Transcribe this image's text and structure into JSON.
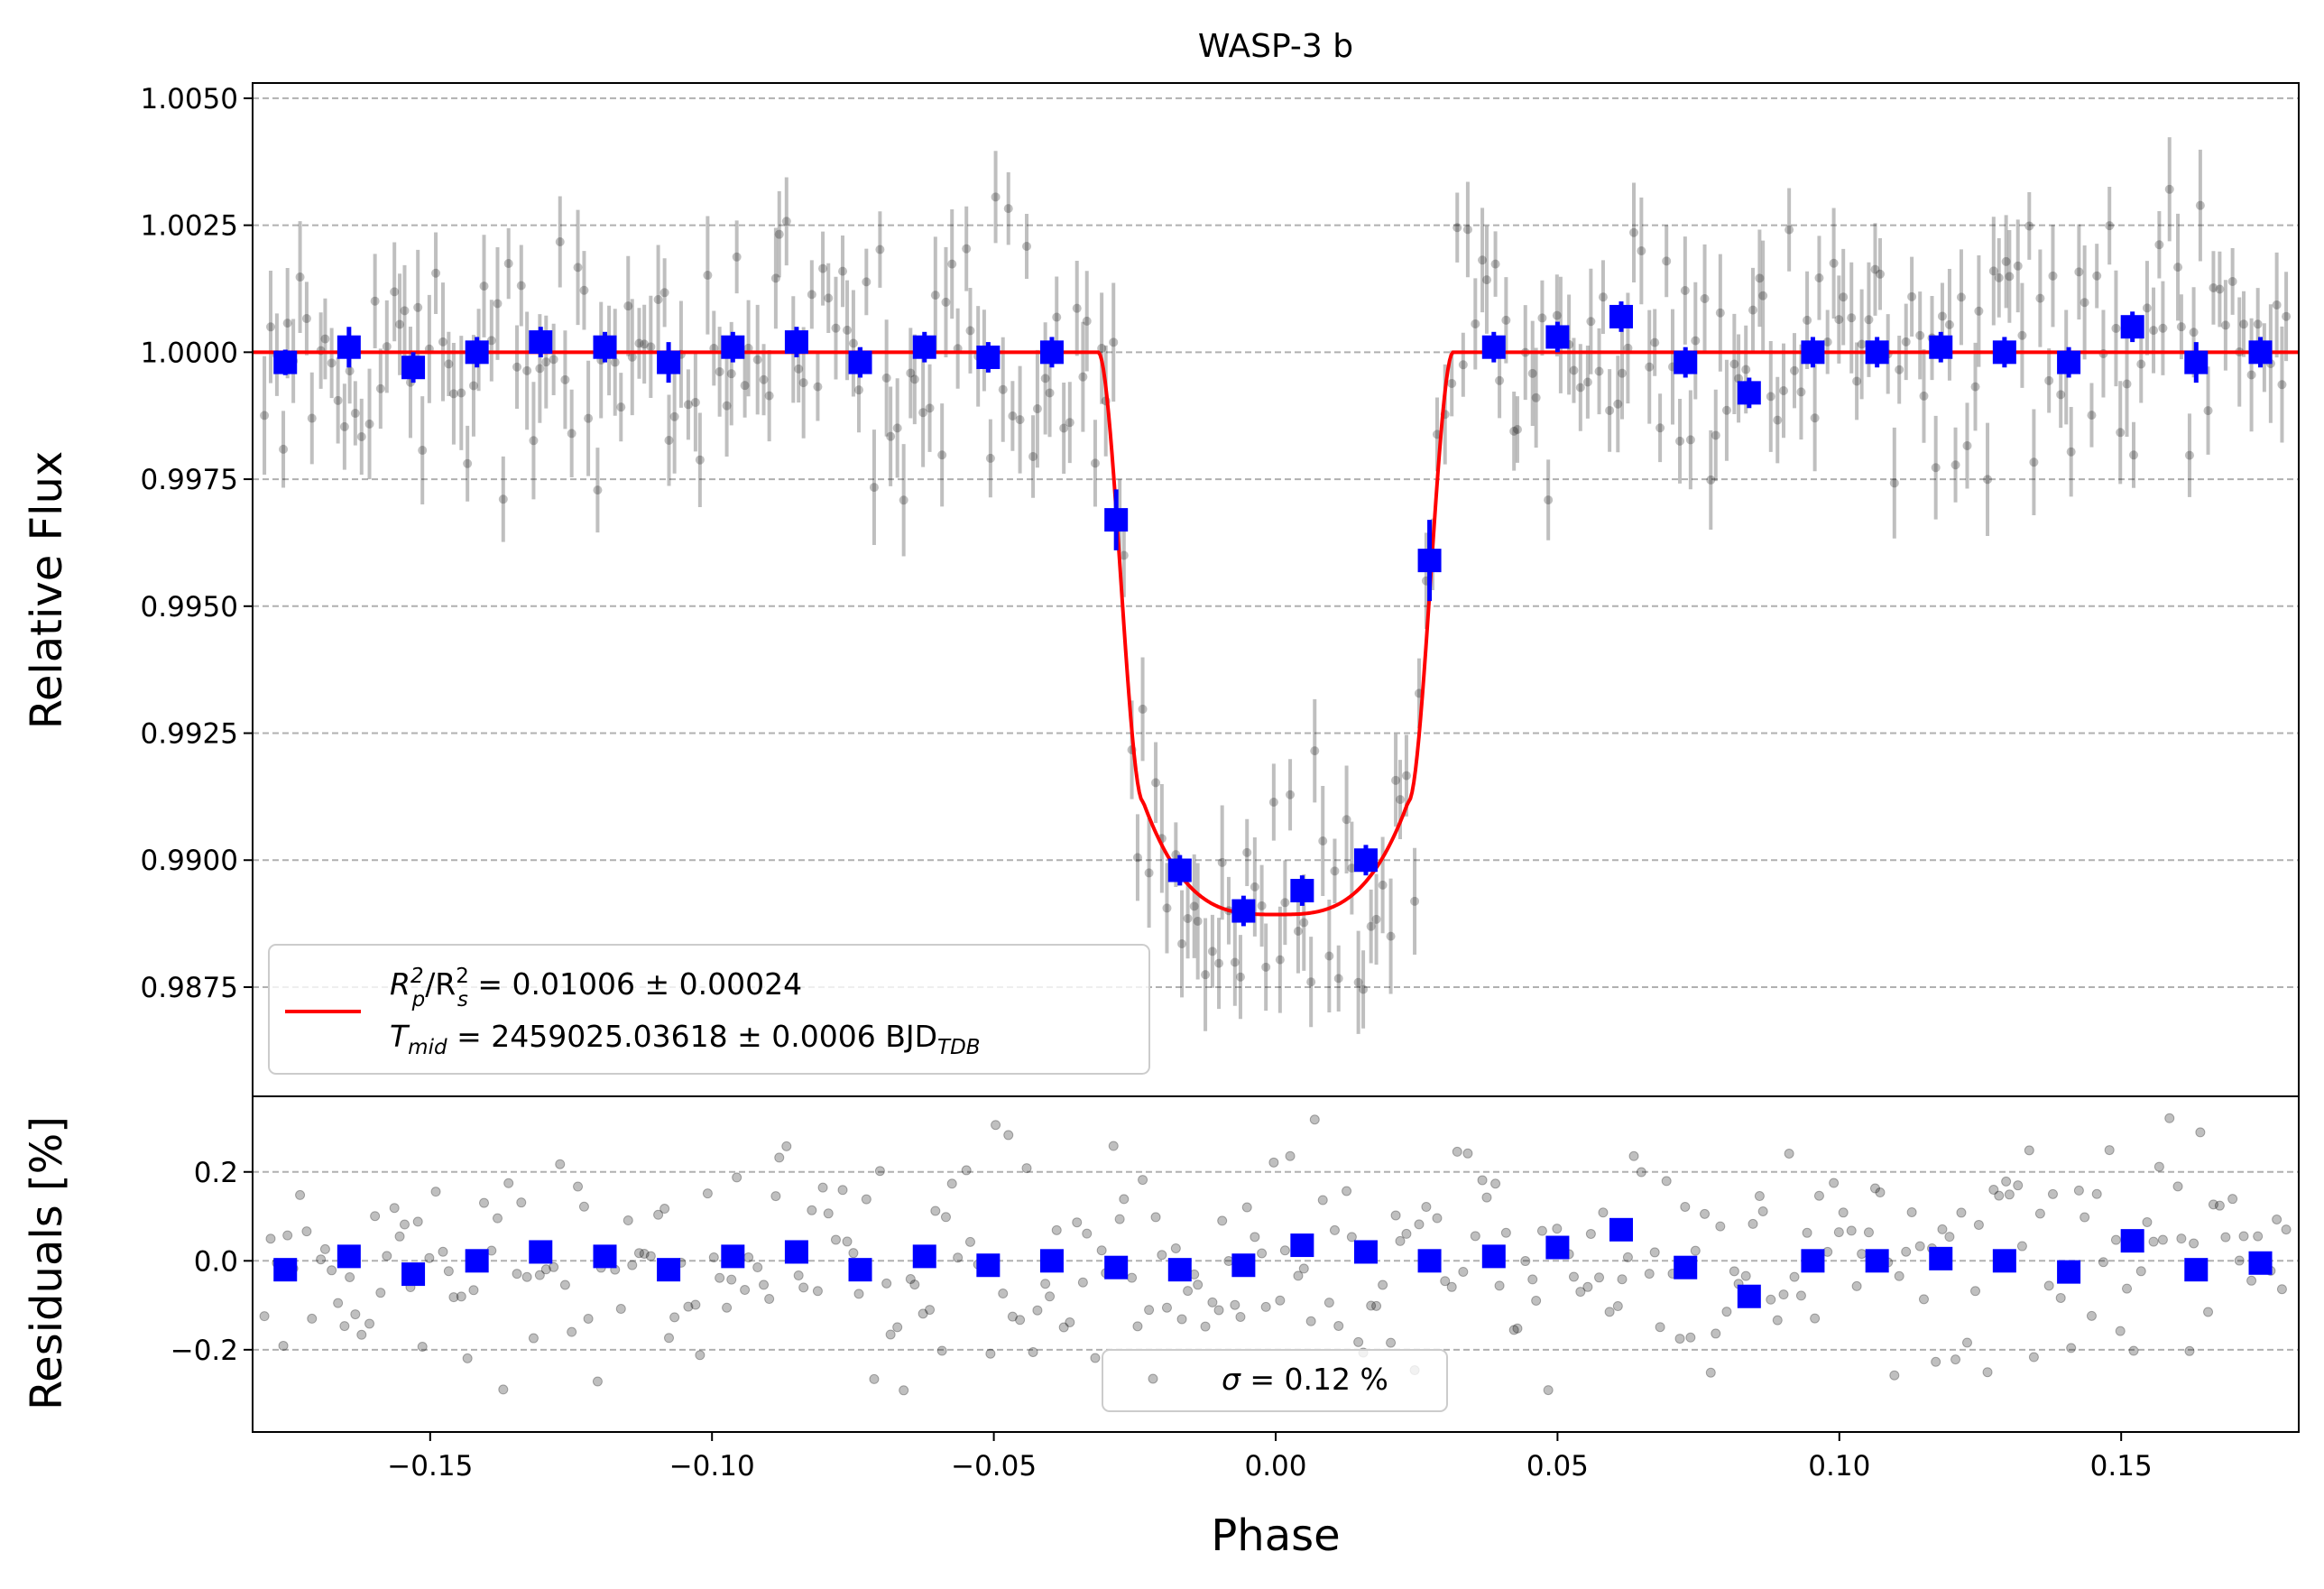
{
  "chart_data": {
    "type": "scatter",
    "title": "WASP-3 b",
    "xlabel": "Phase",
    "xlim": [
      -0.1815,
      0.1815
    ],
    "xticks": [
      -0.15,
      -0.1,
      -0.05,
      0.0,
      0.05,
      0.1,
      0.15
    ],
    "xtick_labels": [
      "−0.15",
      "−0.10",
      "−0.05",
      "0.00",
      "0.05",
      "0.10",
      "0.15"
    ],
    "grid": "horizontal dashed",
    "panels": {
      "flux": {
        "ylabel": "Relative Flux",
        "ylim": [
          0.98535,
          1.0053
        ],
        "yticks": [
          0.9875,
          0.99,
          0.9925,
          0.995,
          0.9975,
          1.0,
          1.0025,
          1.005
        ],
        "ytick_labels": [
          "0.9875",
          "0.9900",
          "0.9925",
          "0.9950",
          "0.9975",
          "1.0000",
          "1.0025",
          "1.0050"
        ],
        "legend": {
          "placement": "lower-left",
          "line1_prefix": "R",
          "line1_sub1": "p",
          "line1_sup1": "2",
          "line1_mid": "/R",
          "line1_sub2": "s",
          "line1_sup2": "2",
          "line1_value": " = 0.01006 ± 0.00024",
          "line2_prefix": "T",
          "line2_sub": "mid",
          "line2_value": " = 2459025.03618 ± 0.0006 BJD",
          "line2_suffix_sub": "TDB"
        },
        "model": {
          "color": "#ff0000",
          "depth": 0.01006,
          "bottom_flux": 0.98893,
          "contact1": -0.0315,
          "contact2": -0.0235,
          "contact3": 0.0235,
          "contact4": 0.0315
        },
        "binned": {
          "color": "#0000ff",
          "x": [
            -0.1757,
            -0.1644,
            -0.153,
            -0.1417,
            -0.1304,
            -0.119,
            -0.1077,
            -0.0963,
            -0.085,
            -0.0737,
            -0.0623,
            -0.051,
            -0.0397,
            -0.0283,
            -0.017,
            -0.0057,
            0.0047,
            0.016,
            0.0273,
            0.0387,
            0.05,
            0.0613,
            0.0727,
            0.084,
            0.0953,
            0.1067,
            0.118,
            0.1293,
            0.1407,
            0.152,
            0.1633,
            0.1747
          ],
          "y": [
            0.9998,
            1.0001,
            0.9997,
            1.0,
            1.0002,
            1.0001,
            0.9998,
            1.0001,
            1.0002,
            0.9998,
            1.0001,
            0.9999,
            1.0,
            0.9967,
            0.9898,
            0.989,
            0.9894,
            0.99,
            0.9959,
            1.0001,
            1.0003,
            1.0007,
            0.9998,
            0.9992,
            1.0,
            1.0,
            1.0001,
            1.0,
            0.9998,
            1.0005,
            0.9998,
            1.0
          ],
          "yerr": [
            0.00025,
            0.0004,
            0.0003,
            0.0003,
            0.0003,
            0.0003,
            0.0004,
            0.0003,
            0.0003,
            0.0003,
            0.0003,
            0.0003,
            0.0003,
            0.0006,
            0.0003,
            0.0003,
            0.0003,
            0.0003,
            0.0008,
            0.0003,
            0.0003,
            0.0003,
            0.0003,
            0.0003,
            0.0003,
            0.0003,
            0.0003,
            0.0003,
            0.0003,
            0.0003,
            0.0004,
            0.0003
          ]
        },
        "raw": {
          "color": "#000000",
          "alpha": 0.25,
          "n_points": 330,
          "typical_err": 0.0009,
          "scatter_sigma": 0.0012
        }
      },
      "residuals": {
        "ylabel": "Residuals [%]",
        "ylim": [
          -0.385,
          0.37
        ],
        "yticks": [
          -0.2,
          0.0,
          0.2
        ],
        "ytick_labels": [
          "−0.2",
          "0.0",
          "0.2"
        ],
        "legend": {
          "placement": "lower-center",
          "sigma_symbol": "σ",
          "text": " = 0.12 %"
        },
        "binned_y": [
          -0.02,
          0.01,
          -0.03,
          0.0,
          0.02,
          0.01,
          -0.02,
          0.01,
          0.02,
          -0.02,
          0.01,
          -0.01,
          0.0,
          -0.015,
          -0.02,
          -0.01,
          0.035,
          0.02,
          0.0,
          0.01,
          0.03,
          0.07,
          -0.015,
          -0.08,
          0.0,
          0.0,
          0.005,
          0.0,
          -0.025,
          0.045,
          -0.02,
          -0.005
        ]
      }
    }
  }
}
